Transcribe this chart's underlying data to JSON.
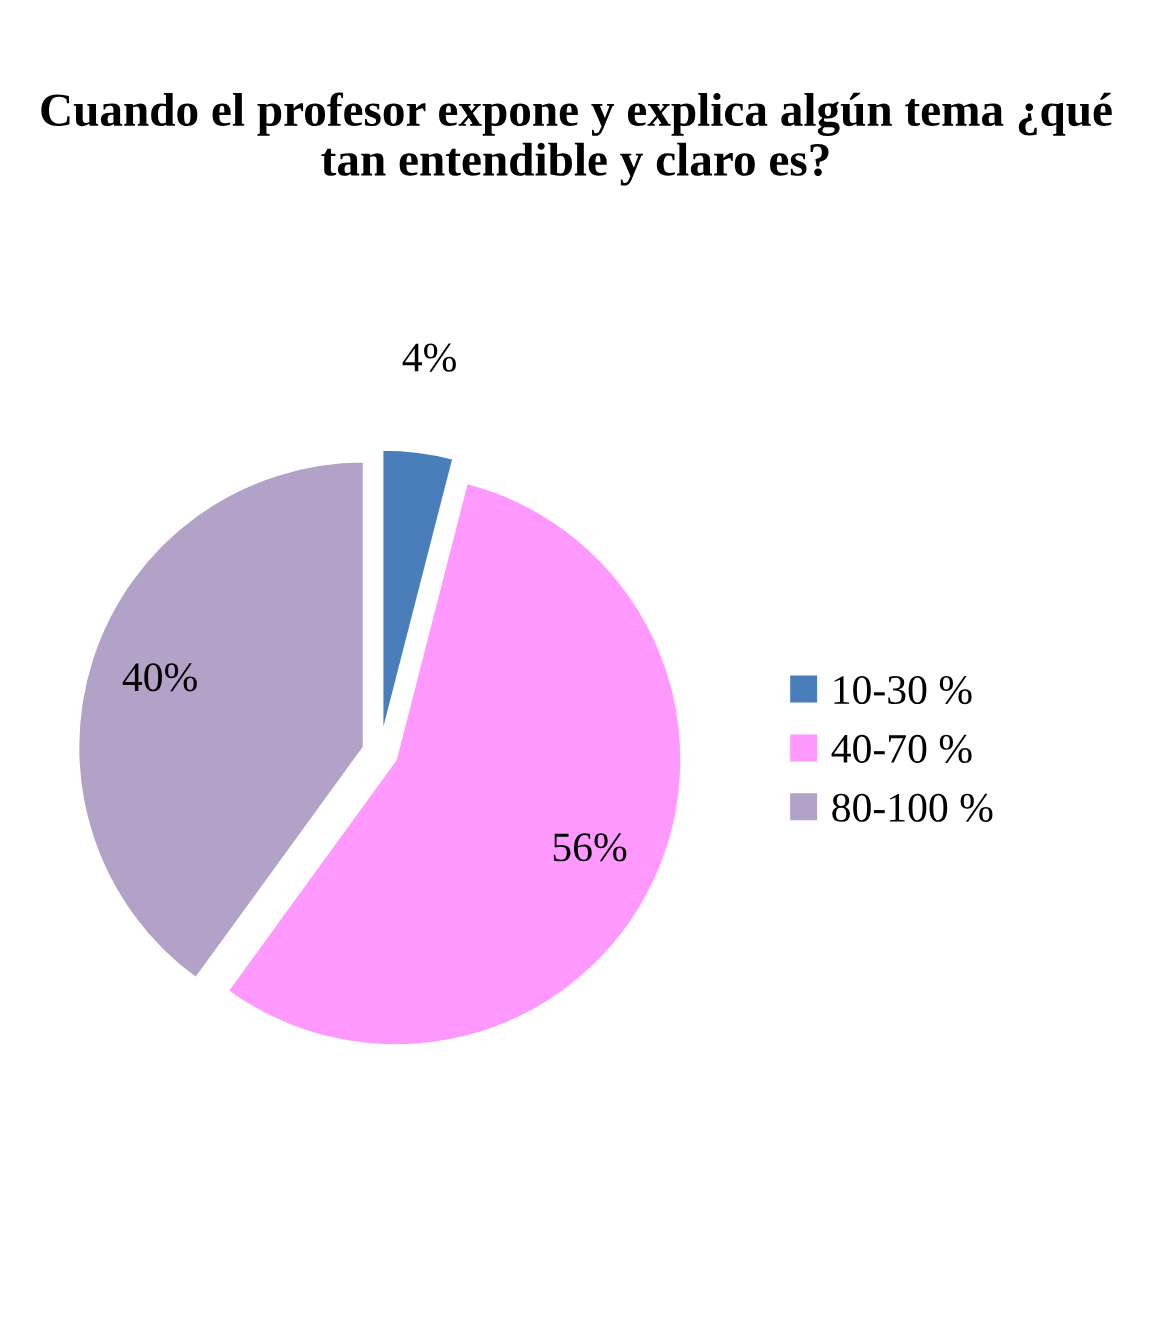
{
  "chart_data": {
    "type": "pie",
    "title": "Cuando el profesor expone y explica algún tema ¿qué tan entendible y claro es?",
    "categories": [
      "10-30 %",
      "40-70 %",
      "80-100 %"
    ],
    "values": [
      4,
      56,
      40
    ],
    "colors": [
      "#4a7ebb",
      "#ff99ff",
      "#b3a2c7"
    ],
    "value_labels": [
      "4%",
      "56%",
      "40%"
    ],
    "legend": "right"
  }
}
